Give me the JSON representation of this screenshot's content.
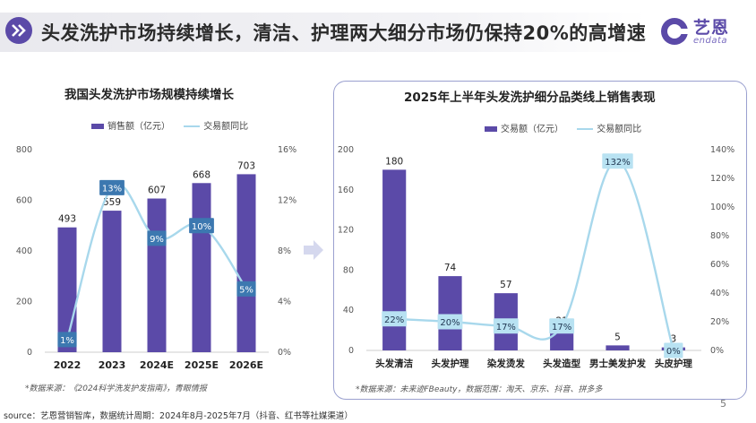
{
  "header": {
    "title": "头发洗护市场持续增长，清洁、护理两大细分市场仍保持20%的高增速",
    "logo_cn": "艺恩",
    "logo_en": "endata"
  },
  "colors": {
    "bar": "#5b4aa8",
    "line": "#a8d8ec",
    "label_bg": "#3c78b0",
    "label_bg_right": "#b8e2f2",
    "accent": "#5b4aa8"
  },
  "left": {
    "note": "*数据来源：《2024科学洗发护发指南》，青眼情报"
  },
  "right": {
    "note": "*数据来源：未来迹FBeauty，数据范围：淘天、京东、抖音、拼多多"
  },
  "footer": {
    "source": "source：艺恩营销智库，数据统计周期：2024年8月-2025年7月（抖音、红书等社媒渠道）",
    "page": "5"
  },
  "chart_data": [
    {
      "type": "bar",
      "title": "我国头发洗护市场规模持续增长",
      "categories": [
        "2022",
        "2023",
        "2024E",
        "2025E",
        "2026E"
      ],
      "series": [
        {
          "name": "销售额（亿元）",
          "type": "bar",
          "axis": "left",
          "values": [
            493,
            559,
            607,
            668,
            703
          ]
        },
        {
          "name": "交易额同比",
          "type": "line",
          "axis": "right",
          "values": [
            1,
            13,
            9,
            10,
            5
          ],
          "labels": [
            "1%",
            "13%",
            "9%",
            "10%",
            "5%"
          ]
        }
      ],
      "y_left": {
        "min": 0,
        "max": 800,
        "ticks": [
          0,
          200,
          400,
          600,
          800
        ]
      },
      "y_right": {
        "min": 0,
        "max": 16,
        "ticks": [
          "0%",
          "4%",
          "8%",
          "12%",
          "16%"
        ]
      }
    },
    {
      "type": "bar",
      "title": "2025年上半年头发洗护细分品类线上销售表现",
      "categories": [
        "头发清洁",
        "头发护理",
        "染发烫发",
        "头发造型",
        "男士美发护发",
        "头皮护理"
      ],
      "series": [
        {
          "name": "交易额（亿元）",
          "type": "bar",
          "axis": "left",
          "values": [
            180,
            74,
            57,
            21,
            5,
            3
          ]
        },
        {
          "name": "交易额同比",
          "type": "line",
          "axis": "right",
          "values": [
            22,
            20,
            17,
            17,
            132,
            0
          ],
          "labels": [
            "22%",
            "20%",
            "17%",
            "17%",
            "132%",
            "0%"
          ]
        }
      ],
      "y_left": {
        "min": 0,
        "max": 200,
        "ticks": [
          0,
          40,
          80,
          120,
          160,
          200
        ]
      },
      "y_right": {
        "min": 0,
        "max": 140,
        "ticks": [
          "0%",
          "20%",
          "40%",
          "60%",
          "80%",
          "100%",
          "120%",
          "140%"
        ]
      }
    }
  ]
}
